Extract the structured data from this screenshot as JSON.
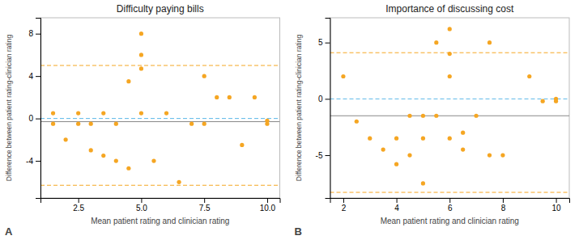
{
  "chart_data": [
    {
      "type": "scatter",
      "title": "Difficulty paying bills",
      "xlabel": "Mean patient rating and clinician rating",
      "ylabel": "Difference between patient rating-clinician rating",
      "annotations": [
        "A"
      ],
      "x": [
        1.5,
        1.5,
        2.0,
        2.5,
        2.5,
        3.0,
        3.0,
        3.5,
        3.5,
        4.0,
        4.0,
        4.5,
        4.5,
        5.0,
        5.0,
        5.0,
        5.0,
        5.5,
        6.0,
        6.5,
        7.0,
        7.5,
        7.5,
        8.0,
        8.5,
        9.0,
        9.5,
        10.0,
        10.0
      ],
      "values": [
        0.5,
        -0.5,
        -2.0,
        0.5,
        -0.5,
        -0.5,
        -3.0,
        -3.5,
        0.5,
        -4.0,
        -0.5,
        -4.7,
        3.5,
        4.7,
        8.0,
        6.0,
        0.5,
        -4.0,
        0.5,
        -6.0,
        -0.5,
        4.0,
        -0.5,
        2.0,
        2.0,
        -2.5,
        2.0,
        -0.5,
        -0.2
      ],
      "color": "#F5A623",
      "xlim": [
        1.0,
        10.5
      ],
      "ylim": [
        -7.5,
        9.5
      ],
      "xticks": [
        2.5,
        {
          "value": 5.0,
          "label": "5.0"
        },
        7.5,
        {
          "value": 10.0,
          "label": "10.0"
        }
      ],
      "yticks": [
        -4,
        0,
        4,
        8
      ],
      "grid": false,
      "lines": [
        {
          "value": 5.0,
          "color": "#F5A623",
          "line_style": "dashed"
        },
        {
          "value": -6.3,
          "color": "#F5A623",
          "line_style": "dashed"
        },
        {
          "value": -0.3,
          "color": "#888888",
          "line_style": "solid"
        },
        {
          "value": 0,
          "color": "#5BB8E8",
          "line_style": "dashed"
        }
      ]
    },
    {
      "type": "scatter",
      "title": "Importance of discussing cost",
      "xlabel": "Mean patient rating and clinician rating",
      "ylabel": "Difference between patient rating-clinician rating",
      "annotations": [
        "B"
      ],
      "x": [
        2.0,
        2.5,
        3.0,
        3.5,
        4.0,
        4.0,
        4.5,
        4.5,
        5.0,
        5.0,
        5.0,
        5.5,
        5.5,
        6.0,
        6.0,
        6.0,
        6.0,
        6.5,
        6.5,
        7.0,
        7.5,
        7.5,
        8.0,
        9.0,
        9.5,
        10.0,
        10.0
      ],
      "values": [
        2.0,
        -2.0,
        -3.5,
        -4.5,
        -5.8,
        -3.5,
        -5.0,
        -1.5,
        -1.5,
        -3.5,
        -7.5,
        5.0,
        -1.5,
        6.2,
        4.0,
        2.0,
        -3.5,
        -3.0,
        -4.5,
        -1.5,
        5.0,
        -5.0,
        -5.0,
        2.0,
        -0.2,
        0.0,
        -0.2
      ],
      "color": "#F5A623",
      "xlim": [
        1.5,
        10.5
      ],
      "ylim": [
        -8.8,
        7.2
      ],
      "xticks": [
        2,
        4,
        6,
        8,
        10
      ],
      "yticks": [
        -5,
        0,
        5
      ],
      "grid": false,
      "lines": [
        {
          "value": 4.1,
          "color": "#F5A623",
          "line_style": "dashed"
        },
        {
          "value": -8.3,
          "color": "#F5A623",
          "line_style": "dashed"
        },
        {
          "value": -1.5,
          "color": "#888888",
          "line_style": "solid"
        },
        {
          "value": 0,
          "color": "#5BB8E8",
          "line_style": "dashed"
        }
      ]
    }
  ]
}
